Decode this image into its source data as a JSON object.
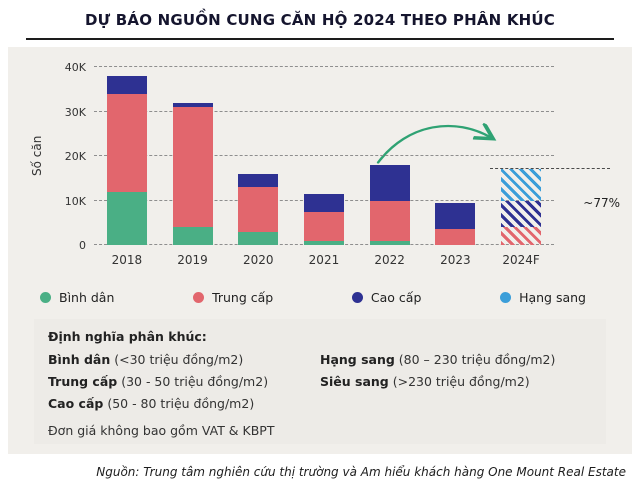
{
  "title": "DỰ BÁO NGUỒN CUNG CĂN HỘ 2024 THEO PHÂN KHÚC",
  "chart_data": {
    "type": "bar",
    "stacked": true,
    "title": "DỰ BÁO NGUỒN CUNG CĂN HỘ 2024 THEO PHÂN KHÚC",
    "ylabel": "Số căn",
    "categories": [
      "2018",
      "2019",
      "2020",
      "2021",
      "2022",
      "2023",
      "2024F"
    ],
    "series": [
      {
        "name": "Bình dân",
        "slug": "binh-dan",
        "color": "#4aaf85",
        "values": [
          12000,
          4000,
          3000,
          1000,
          1000,
          0,
          0
        ]
      },
      {
        "name": "Trung cấp",
        "slug": "trung-cap",
        "color": "#e2666d",
        "values": [
          22000,
          27000,
          10000,
          6500,
          9000,
          3500,
          4000
        ]
      },
      {
        "name": "Cao cấp",
        "slug": "cao-cap",
        "color": "#2e3192",
        "values": [
          4000,
          1000,
          3000,
          4000,
          8000,
          6000,
          6000
        ]
      },
      {
        "name": "Hạng sang",
        "slug": "hang-sang",
        "color": "#3b9ed9",
        "values": [
          0,
          0,
          0,
          0,
          0,
          0,
          7000
        ]
      }
    ],
    "ylim": [
      0,
      40000
    ],
    "yticks": [
      "0",
      "10K",
      "20K",
      "30K",
      "40K"
    ],
    "grid": "dashed-horizontal",
    "legend_position": "bottom",
    "forecast_category": "2024F",
    "forecast_style": "diagonal-hatch",
    "annotation": "~77%",
    "arrow_color": "#2fa273"
  },
  "definitions": {
    "heading": "Định nghĩa phân khúc:",
    "columns": [
      [
        {
          "term": "Bình dân",
          "slug": "binh-dan",
          "range": "(<30 triệu đồng/m2)"
        },
        {
          "term": "Trung cấp",
          "slug": "trung-cap",
          "range": "(30 - 50 triệu đồng/m2)"
        },
        {
          "term": "Cao cấp",
          "slug": "cao-cap",
          "range": "(50 - 80 triệu đồng/m2)"
        }
      ],
      [
        {
          "term": "Hạng sang",
          "slug": "hang-sang",
          "range": "(80 – 230 triệu đồng/m2)"
        },
        {
          "term": "Siêu sang",
          "slug": "sieu-sang",
          "range": "(>230 triệu đồng/m2)"
        }
      ]
    ],
    "note": "Đơn giá không bao gồm VAT & KBPT"
  },
  "source": "Nguồn: Trung tâm nghiên cứu thị trường và Am hiểu khách hàng One Mount Real Estate"
}
